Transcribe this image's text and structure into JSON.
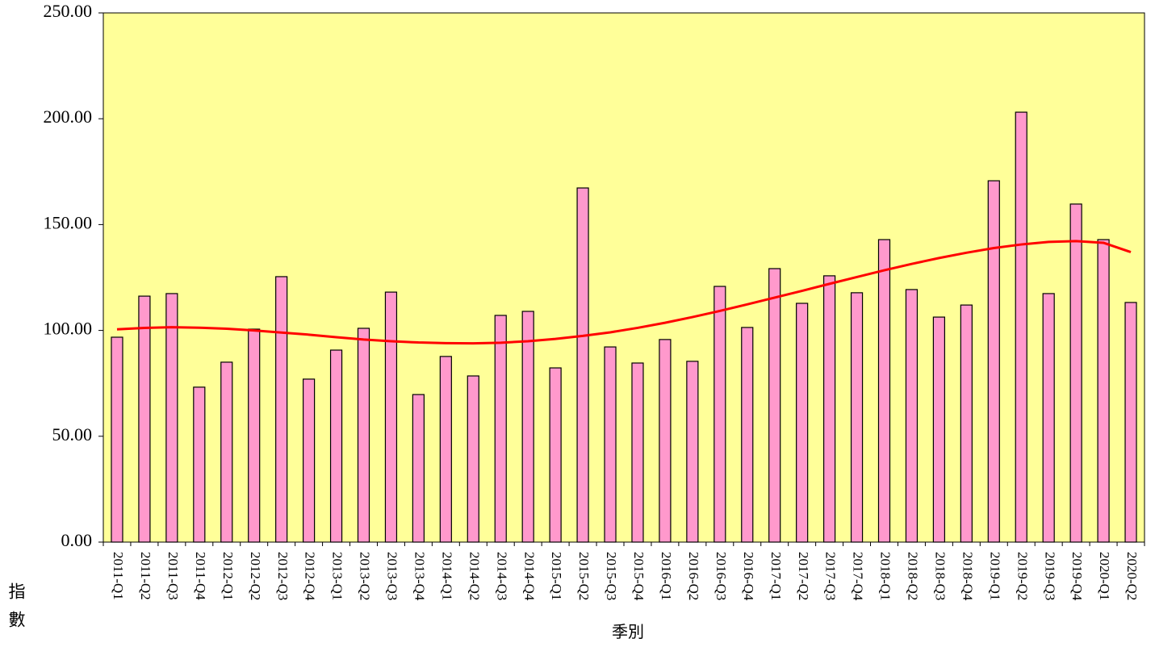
{
  "chart_data": {
    "type": "bar",
    "x_label": "季別",
    "y_label": "指數",
    "categories": [
      "2011-Q1",
      "2011-Q2",
      "2011-Q3",
      "2011-Q4",
      "2012-Q1",
      "2012-Q2",
      "2012-Q3",
      "2012-Q4",
      "2013-Q1",
      "2013-Q2",
      "2013-Q3",
      "2013-Q4",
      "2014-Q1",
      "2014-Q2",
      "2014-Q3",
      "2014-Q4",
      "2015-Q1",
      "2015-Q2",
      "2015-Q3",
      "2015-Q4",
      "2016-Q1",
      "2016-Q2",
      "2016-Q3",
      "2016-Q4",
      "2017-Q1",
      "2017-Q2",
      "2017-Q3",
      "2017-Q4",
      "2018-Q1",
      "2018-Q2",
      "2018-Q3",
      "2018-Q4",
      "2019-Q1",
      "2019-Q2",
      "2019-Q3",
      "2019-Q4",
      "2020-Q1",
      "2020-Q2"
    ],
    "series": [
      {
        "type": "bar",
        "color": "#ff99cc",
        "values": [
          96.8,
          116.2,
          117.4,
          73.2,
          85,
          100.6,
          125.4,
          77,
          90.7,
          101,
          118.1,
          69.7,
          87.7,
          78.5,
          107.1,
          109,
          82.3,
          167.3,
          92.2,
          84.6,
          95.7,
          85.4,
          120.8,
          101.4,
          129.2,
          112.8,
          125.8,
          117.8,
          142.9,
          119.3,
          106.3,
          112,
          170.7,
          203.1,
          117.4,
          159.7,
          142.9,
          113.2
        ]
      },
      {
        "type": "line",
        "color": "#ff0000",
        "values": [
          100.5,
          101.2,
          101.5,
          101.3,
          100.8,
          100,
          99,
          98,
          96.8,
          95.7,
          94.9,
          94.3,
          94,
          93.9,
          94.2,
          94.9,
          96,
          97.4,
          99.1,
          101.2,
          103.6,
          106.3,
          109.2,
          112.3,
          115.5,
          118.7,
          122,
          125.2,
          128.4,
          131.4,
          134.2,
          136.7,
          138.9,
          140.6,
          141.8,
          142.2,
          141.4,
          137
        ]
      }
    ],
    "background": "#ffff99",
    "ylim": [
      0,
      250
    ],
    "yticks": [
      {
        "value": 0,
        "label": "0.00"
      },
      {
        "value": 50,
        "label": "50.00"
      },
      {
        "value": 100,
        "label": "100.00"
      },
      {
        "value": 150,
        "label": "150.00"
      },
      {
        "value": 200,
        "label": "200.00"
      },
      {
        "value": 250,
        "label": "250.00"
      }
    ]
  }
}
